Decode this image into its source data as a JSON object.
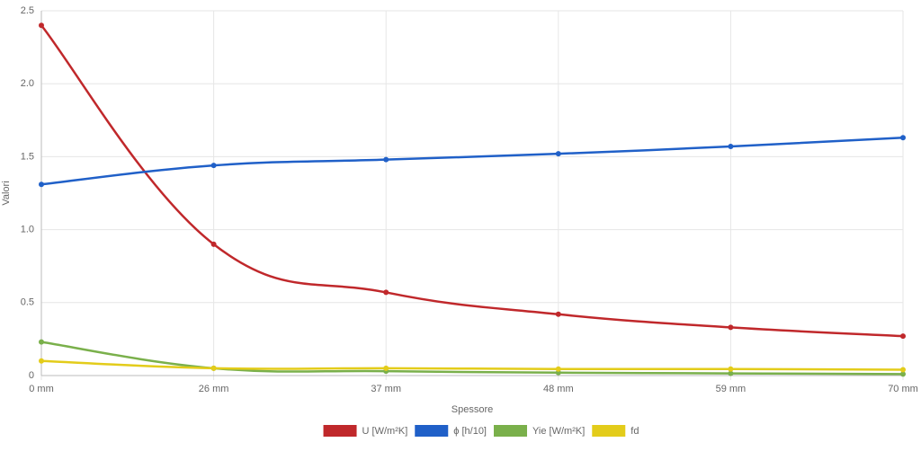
{
  "chart_data": {
    "type": "line",
    "x_label": "Spessore",
    "y_label": "Valori",
    "categories": [
      "0 mm",
      "26 mm",
      "37 mm",
      "48 mm",
      "59 mm",
      "70 mm"
    ],
    "series": [
      {
        "name": "U [W/m²K]",
        "color": "#c0282b",
        "values": [
          2.4,
          0.9,
          0.57,
          0.42,
          0.33,
          0.27
        ]
      },
      {
        "name": "ϕ [h/10]",
        "color": "#2060c8",
        "values": [
          1.31,
          1.44,
          1.48,
          1.52,
          1.57,
          1.63
        ]
      },
      {
        "name": "Yie [W/m²K]",
        "color": "#7ab04b",
        "values": [
          0.23,
          0.05,
          0.03,
          0.02,
          0.015,
          0.01
        ]
      },
      {
        "name": "fd",
        "color": "#e3cc1a",
        "values": [
          0.1,
          0.05,
          0.05,
          0.045,
          0.045,
          0.04
        ]
      }
    ],
    "ylim": [
      0,
      2.5
    ],
    "yticks": [
      0,
      0.5,
      {
        "value": 1,
        "label": "1.0"
      },
      1.5,
      {
        "value": 2,
        "label": "2.0"
      },
      2.5
    ],
    "grid": true,
    "legend": "bottom"
  }
}
